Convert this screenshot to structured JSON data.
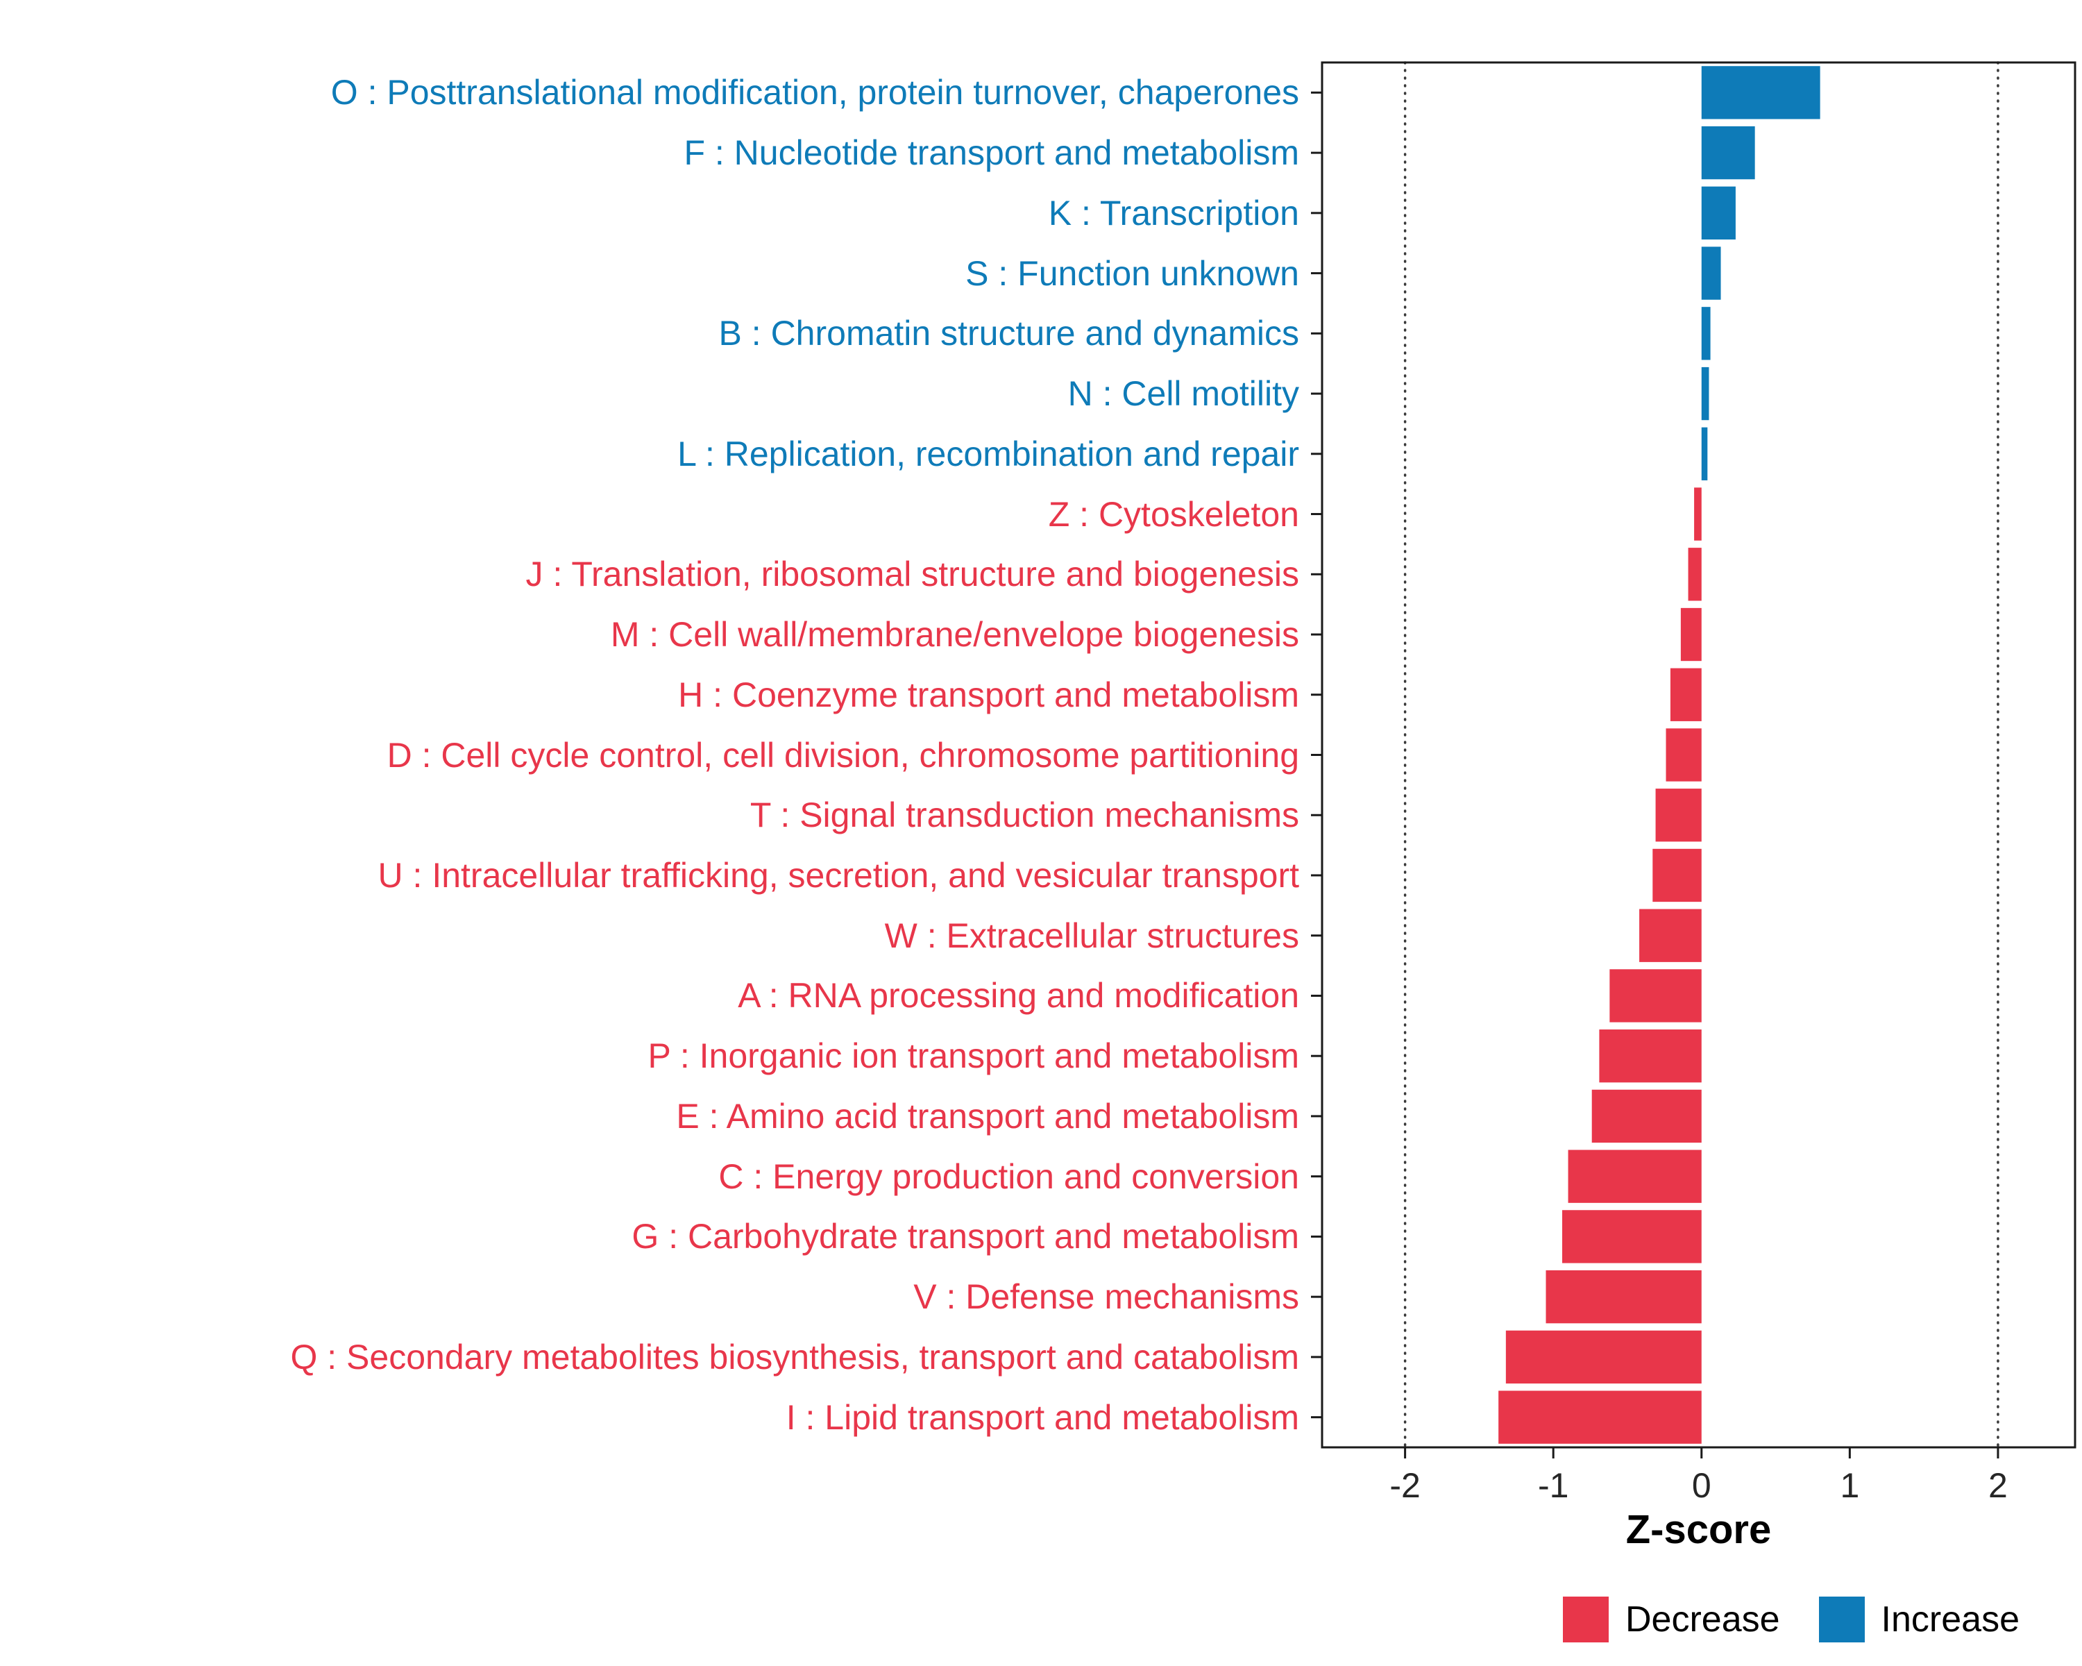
{
  "chart_data": {
    "type": "bar",
    "orientation": "horizontal",
    "title": "",
    "xlabel": "Z-score",
    "xlim": [
      -2.56,
      2.52
    ],
    "xticks": [
      -2,
      -1,
      0,
      1,
      2
    ],
    "reference_lines": [
      -2,
      2
    ],
    "grid": false,
    "categories": [
      "O : Posttranslational modification, protein turnover, chaperones",
      "F : Nucleotide transport and metabolism",
      "K : Transcription",
      "S : Function unknown",
      "B : Chromatin structure and dynamics",
      "N : Cell motility",
      "L : Replication, recombination and repair",
      "Z : Cytoskeleton",
      "J : Translation, ribosomal structure and biogenesis",
      "M : Cell wall/membrane/envelope biogenesis",
      "H : Coenzyme transport and metabolism",
      "D : Cell cycle control, cell division, chromosome partitioning",
      "T : Signal transduction mechanisms",
      "U : Intracellular trafficking, secretion, and vesicular transport",
      "W : Extracellular structures",
      "A : RNA processing and modification",
      "P : Inorganic ion transport and metabolism",
      "E : Amino acid transport and metabolism",
      "C : Energy production and conversion",
      "G : Carbohydrate transport and metabolism",
      "V : Defense mechanisms",
      "Q : Secondary metabolites biosynthesis, transport and catabolism",
      "I : Lipid transport and metabolism"
    ],
    "values": [
      0.8,
      0.36,
      0.23,
      0.13,
      0.06,
      0.05,
      0.04,
      -0.05,
      -0.09,
      -0.14,
      -0.21,
      -0.24,
      -0.31,
      -0.33,
      -0.42,
      -0.62,
      -0.69,
      -0.74,
      -0.9,
      -0.94,
      -1.05,
      -1.32,
      -1.37
    ],
    "groups": [
      "Increase",
      "Increase",
      "Increase",
      "Increase",
      "Increase",
      "Increase",
      "Increase",
      "Decrease",
      "Decrease",
      "Decrease",
      "Decrease",
      "Decrease",
      "Decrease",
      "Decrease",
      "Decrease",
      "Decrease",
      "Decrease",
      "Decrease",
      "Decrease",
      "Decrease",
      "Decrease",
      "Decrease",
      "Decrease"
    ],
    "colors": {
      "Increase": "#0E7BB8",
      "Decrease": "#E8364A"
    },
    "panel_border_color": "#1a1a1a",
    "tick_label_color": "#262626",
    "legend": {
      "position": "bottom-right",
      "items": [
        {
          "label": "Decrease",
          "color": "#E8364A"
        },
        {
          "label": "Increase",
          "color": "#0E7BB8"
        }
      ]
    }
  }
}
